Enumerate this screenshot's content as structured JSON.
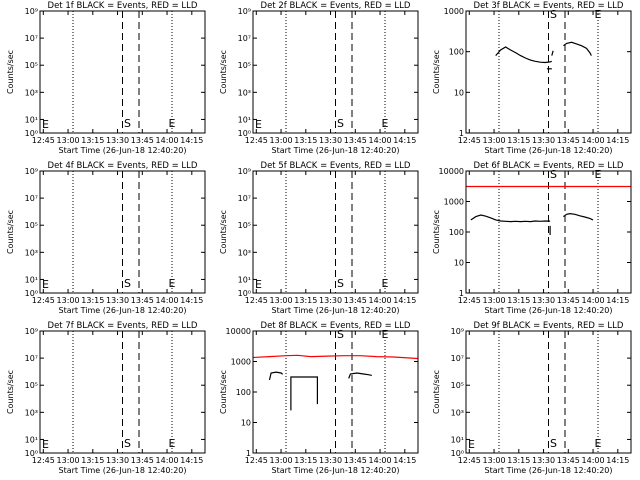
{
  "figure": {
    "x_ticks": [
      "12:45",
      "13:00",
      "13:15",
      "13:30",
      "13:45",
      "14:00",
      "14:15"
    ],
    "xlabel": "Start Time (26-Jun-18 12:40:20)",
    "ylabel": "Counts/sec",
    "x_range_min": [
      -5,
      95
    ],
    "dotted_x_min": [
      15,
      75
    ],
    "dashed_x_min": [
      45,
      55
    ],
    "s_marker": {
      "label": "S",
      "x_min": 48
    },
    "e_marker": {
      "label": "E",
      "x_min": 75
    },
    "colors": {
      "events": "#000000",
      "lld": "#ff0000"
    }
  },
  "chart_data": [
    {
      "type": "line",
      "title": "Det 1f BLACK = Events, RED = LLD",
      "y_scale": "log",
      "ylim": [
        1,
        1000000000.0
      ],
      "yticks": [
        "10⁰",
        "10¹",
        "10³",
        "10⁵",
        "10⁷",
        "10⁹"
      ],
      "yticks_values": [
        1,
        10,
        1000.0,
        100000.0,
        10000000.0,
        1000000000.0
      ],
      "series": []
    },
    {
      "type": "line",
      "title": "Det 2f BLACK = Events, RED = LLD",
      "y_scale": "log",
      "ylim": [
        1,
        1000000000.0
      ],
      "yticks": [
        "10⁰",
        "10¹",
        "10³",
        "10⁵",
        "10⁷",
        "10⁹"
      ],
      "yticks_values": [
        1,
        10,
        1000.0,
        100000.0,
        10000000.0,
        1000000000.0
      ],
      "series": []
    },
    {
      "type": "line",
      "title": "Det 3f BLACK = Events, RED = LLD",
      "y_scale": "log",
      "ylim": [
        1,
        1000
      ],
      "yticks": [
        "1",
        "10",
        "100",
        "1000"
      ],
      "yticks_values": [
        1,
        10,
        100,
        1000
      ],
      "series": [
        {
          "color": "#000000",
          "segments": [
            [
              [
                13,
                80
              ],
              [
                16,
                110
              ],
              [
                19,
                130
              ],
              [
                22,
                110
              ],
              [
                25,
                95
              ],
              [
                28,
                80
              ],
              [
                31,
                70
              ],
              [
                34,
                62
              ],
              [
                37,
                58
              ],
              [
                40,
                55
              ],
              [
                43,
                54
              ],
              [
                46,
                56
              ],
              [
                47,
                58
              ]
            ],
            [
              [
                44,
                38
              ],
              [
                47,
                38
              ]
            ],
            [
              [
                47,
                80
              ],
              [
                47.8,
                105
              ]
            ],
            [
              [
                54,
                140
              ],
              [
                56,
                160
              ],
              [
                59,
                170
              ],
              [
                62,
                155
              ],
              [
                65,
                140
              ],
              [
                68,
                120
              ],
              [
                70,
                95
              ],
              [
                71,
                80
              ]
            ]
          ]
        }
      ]
    },
    {
      "type": "line",
      "title": "Det 4f BLACK = Events, RED = LLD",
      "y_scale": "log",
      "ylim": [
        1,
        1000000000.0
      ],
      "yticks": [
        "10⁰",
        "10¹",
        "10³",
        "10⁵",
        "10⁷",
        "10⁹"
      ],
      "yticks_values": [
        1,
        10,
        1000.0,
        100000.0,
        10000000.0,
        1000000000.0
      ],
      "series": []
    },
    {
      "type": "line",
      "title": "Det 5f BLACK = Events, RED = LLD",
      "y_scale": "log",
      "ylim": [
        1,
        1000000000.0
      ],
      "yticks": [
        "10⁰",
        "10¹",
        "10³",
        "10⁵",
        "10⁷",
        "10⁹"
      ],
      "yticks_values": [
        1,
        10,
        1000.0,
        100000.0,
        10000000.0,
        1000000000.0
      ],
      "series": []
    },
    {
      "type": "line",
      "title": "Det 6f BLACK = Events, RED = LLD",
      "y_scale": "log",
      "ylim": [
        1,
        10000
      ],
      "yticks": [
        "1",
        "10",
        "100",
        "1000",
        "10000"
      ],
      "yticks_values": [
        1,
        10,
        100,
        1000,
        10000
      ],
      "series": [
        {
          "color": "#ff0000",
          "segments": [
            [
              [
                -5,
                3100
              ],
              [
                95,
                3100
              ]
            ]
          ]
        },
        {
          "color": "#000000",
          "segments": [
            [
              [
                -2,
                250
              ],
              [
                1,
                320
              ],
              [
                4,
                360
              ],
              [
                7,
                330
              ],
              [
                10,
                290
              ],
              [
                13,
                250
              ],
              [
                16,
                230
              ],
              [
                19,
                225
              ],
              [
                22,
                220
              ],
              [
                25,
                225
              ],
              [
                28,
                220
              ],
              [
                31,
                225
              ],
              [
                34,
                220
              ],
              [
                37,
                230
              ],
              [
                40,
                225
              ],
              [
                43,
                230
              ],
              [
                46,
                228
              ]
            ],
            [
              [
                46,
                160
              ],
              [
                46,
                80
              ]
            ],
            [
              [
                54,
                320
              ],
              [
                56,
                380
              ],
              [
                58,
                400
              ],
              [
                61,
                380
              ],
              [
                64,
                340
              ],
              [
                67,
                310
              ],
              [
                70,
                280
              ],
              [
                72,
                250
              ]
            ]
          ]
        }
      ]
    },
    {
      "type": "line",
      "title": "Det 7f BLACK = Events, RED = LLD",
      "y_scale": "log",
      "ylim": [
        1,
        1000000000.0
      ],
      "yticks": [
        "10⁰",
        "10¹",
        "10³",
        "10⁵",
        "10⁷",
        "10⁹"
      ],
      "yticks_values": [
        1,
        10,
        1000.0,
        100000.0,
        10000000.0,
        1000000000.0
      ],
      "series": []
    },
    {
      "type": "line",
      "title": "Det 8f BLACK = Events, RED = LLD",
      "y_scale": "log",
      "ylim": [
        1,
        10000
      ],
      "yticks": [
        "1",
        "10",
        "100",
        "1000",
        "10000"
      ],
      "yticks_values": [
        1,
        10,
        100,
        1000,
        10000
      ],
      "series": [
        {
          "color": "#ff0000",
          "segments": [
            [
              [
                -5,
                1350
              ],
              [
                5,
                1450
              ],
              [
                15,
                1550
              ],
              [
                22,
                1600
              ],
              [
                30,
                1450
              ],
              [
                40,
                1500
              ],
              [
                50,
                1550
              ],
              [
                60,
                1550
              ],
              [
                70,
                1450
              ],
              [
                80,
                1400
              ],
              [
                90,
                1300
              ],
              [
                95,
                1250
              ]
            ]
          ]
        },
        {
          "color": "#000000",
          "segments": [
            [
              [
                5,
                250
              ],
              [
                6,
                420
              ],
              [
                9,
                450
              ],
              [
                12,
                420
              ],
              [
                13,
                380
              ]
            ],
            [
              [
                18,
                25
              ],
              [
                18,
                310
              ],
              [
                34,
                310
              ],
              [
                34,
                40
              ]
            ],
            [
              [
                53,
                280
              ],
              [
                54,
                390
              ],
              [
                58,
                420
              ],
              [
                62,
                390
              ],
              [
                65,
                370
              ],
              [
                67,
                350
              ]
            ]
          ]
        }
      ]
    },
    {
      "type": "line",
      "title": "Det 9f BLACK = Events, RED = LLD",
      "y_scale": "log",
      "ylim": [
        1,
        1000000000.0
      ],
      "yticks": [
        "10⁰",
        "10¹",
        "10³",
        "10⁵",
        "10⁷",
        "10⁹"
      ],
      "yticks_values": [
        1,
        10,
        1000.0,
        100000.0,
        10000000.0,
        1000000000.0
      ],
      "series": []
    }
  ]
}
